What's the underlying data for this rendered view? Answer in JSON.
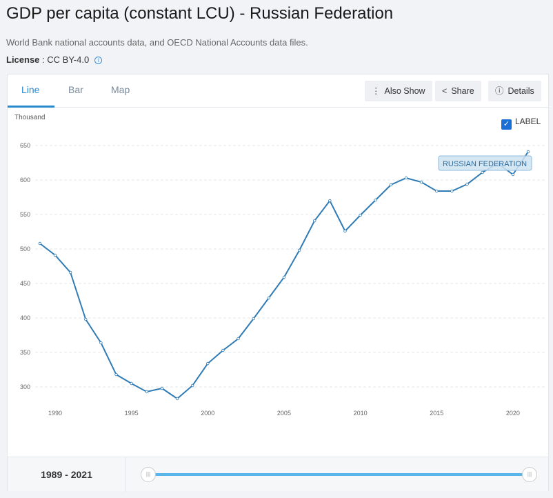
{
  "header": {
    "title": "GDP per capita (constant LCU) - Russian Federation",
    "source": "World Bank national accounts data, and OECD National Accounts data files.",
    "license_label": "License",
    "license_value": ": CC BY-4.0"
  },
  "tabs": [
    "Line",
    "Bar",
    "Map"
  ],
  "buttons": {
    "also_show": "Also Show",
    "share": "Share",
    "details": "Details"
  },
  "label_toggle": {
    "text": "LABEL",
    "checked": true
  },
  "range": {
    "start": "1989",
    "sep": " - ",
    "end": "2021"
  },
  "colors": {
    "line": "#2f7bb5",
    "accent": "#2a8ad0"
  },
  "chart_data": {
    "type": "line",
    "ylabel": "Thousand",
    "ylim": [
      280,
      660
    ],
    "yticks": [
      300,
      350,
      400,
      450,
      500,
      550,
      600,
      650
    ],
    "xticks": [
      1990,
      1995,
      2000,
      2005,
      2010,
      2015,
      2020
    ],
    "series": [
      {
        "name": "RUSSIAN FEDERATION",
        "x": [
          1989,
          1990,
          1991,
          1992,
          1993,
          1994,
          1995,
          1996,
          1997,
          1998,
          1999,
          2000,
          2001,
          2002,
          2003,
          2004,
          2005,
          2006,
          2007,
          2008,
          2009,
          2010,
          2011,
          2012,
          2013,
          2014,
          2015,
          2016,
          2017,
          2018,
          2019,
          2020,
          2021
        ],
        "values": [
          508,
          491,
          466,
          398,
          364,
          318,
          305,
          293,
          298,
          283,
          302,
          334,
          353,
          370,
          399,
          429,
          459,
          498,
          541,
          570,
          526,
          549,
          571,
          593,
          603,
          597,
          584,
          584,
          594,
          611,
          624,
          608,
          641
        ]
      }
    ]
  }
}
